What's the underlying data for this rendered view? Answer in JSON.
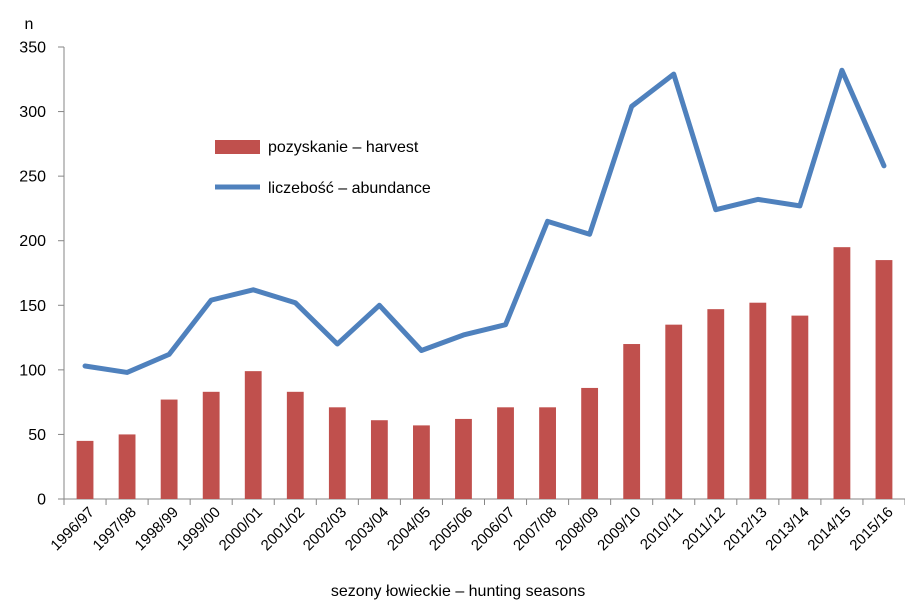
{
  "chart_data": {
    "type": "bar",
    "ylabel": "n",
    "xlabel": "sezony łowieckie – hunting seasons",
    "ylim": [
      0,
      350
    ],
    "yticks": [
      0,
      50,
      100,
      150,
      200,
      250,
      300,
      350
    ],
    "grid": false,
    "legend_position": "upper-left-inside",
    "categories": [
      "1996/97",
      "1997/98",
      "1998/99",
      "1999/00",
      "2000/01",
      "2001/02",
      "2002/03",
      "2003/04",
      "2004/05",
      "2005/06",
      "2006/07",
      "2007/08",
      "2008/09",
      "2009/10",
      "2010/11",
      "2011/12",
      "2012/13",
      "2013/14",
      "2014/15",
      "2015/16"
    ],
    "series": [
      {
        "name": "pozyskanie – harvest",
        "type": "bar",
        "color": "#c0504d",
        "values": [
          45,
          50,
          77,
          83,
          99,
          83,
          71,
          61,
          57,
          62,
          71,
          71,
          86,
          120,
          135,
          147,
          152,
          142,
          195,
          185
        ]
      },
      {
        "name": "liczebość – abundance",
        "type": "line",
        "color": "#4f81bd",
        "values": [
          103,
          98,
          112,
          154,
          162,
          152,
          120,
          150,
          115,
          127,
          135,
          215,
          205,
          304,
          329,
          224,
          232,
          227,
          332,
          258
        ]
      }
    ]
  }
}
